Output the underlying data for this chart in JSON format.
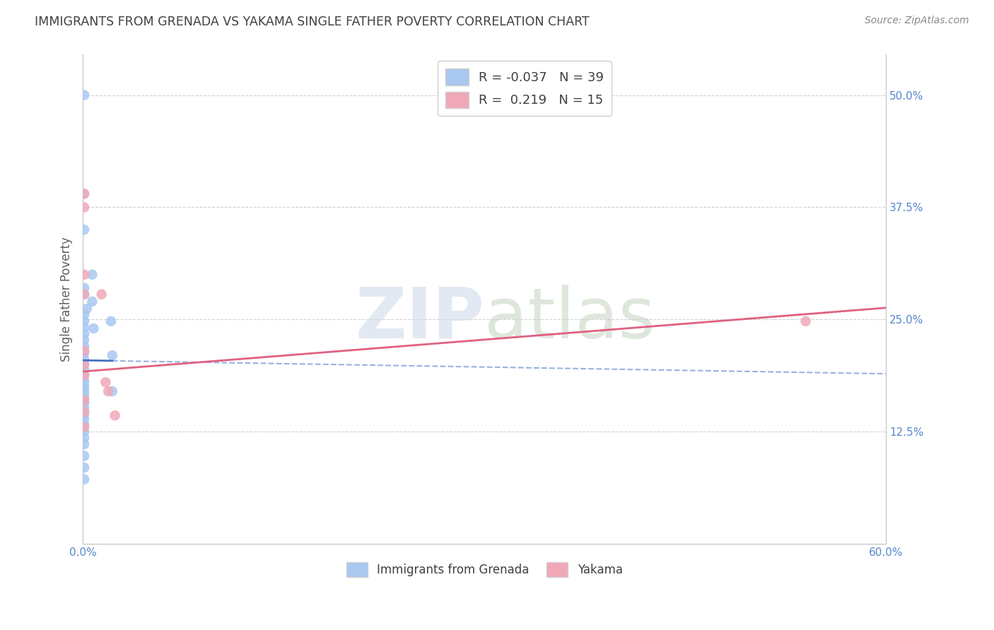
{
  "title": "IMMIGRANTS FROM GRENADA VS YAKAMA SINGLE FATHER POVERTY CORRELATION CHART",
  "source": "Source: ZipAtlas.com",
  "ylabel": "Single Father Poverty",
  "xlim": [
    0.0,
    0.6
  ],
  "ylim": [
    0.0,
    0.545
  ],
  "xticks": [
    0.0,
    0.12,
    0.24,
    0.36,
    0.48,
    0.6
  ],
  "xtick_labels": [
    "0.0%",
    "",
    "",
    "",
    "",
    "60.0%"
  ],
  "yticks": [
    0.0,
    0.125,
    0.25,
    0.375,
    0.5
  ],
  "ytick_labels": [
    "",
    "12.5%",
    "25.0%",
    "37.5%",
    "50.0%"
  ],
  "legend_label1": "R = -0.037   N = 39",
  "legend_label2": "R =  0.219   N = 15",
  "legend_footer1": "Immigrants from Grenada",
  "legend_footer2": "Yakama",
  "watermark_zip": "ZIP",
  "watermark_atlas": "atlas",
  "blue_scatter": [
    [
      0.001,
      0.5
    ],
    [
      0.001,
      0.39
    ],
    [
      0.001,
      0.35
    ],
    [
      0.007,
      0.3
    ],
    [
      0.001,
      0.285
    ],
    [
      0.001,
      0.278
    ],
    [
      0.007,
      0.27
    ],
    [
      0.003,
      0.262
    ],
    [
      0.001,
      0.255
    ],
    [
      0.001,
      0.248
    ],
    [
      0.001,
      0.241
    ],
    [
      0.001,
      0.234
    ],
    [
      0.001,
      0.227
    ],
    [
      0.001,
      0.22
    ],
    [
      0.001,
      0.213
    ],
    [
      0.001,
      0.206
    ],
    [
      0.001,
      0.2
    ],
    [
      0.001,
      0.194
    ],
    [
      0.001,
      0.188
    ],
    [
      0.001,
      0.182
    ],
    [
      0.001,
      0.177
    ],
    [
      0.001,
      0.172
    ],
    [
      0.001,
      0.167
    ],
    [
      0.001,
      0.162
    ],
    [
      0.001,
      0.157
    ],
    [
      0.001,
      0.151
    ],
    [
      0.001,
      0.145
    ],
    [
      0.001,
      0.139
    ],
    [
      0.001,
      0.133
    ],
    [
      0.001,
      0.125
    ],
    [
      0.001,
      0.118
    ],
    [
      0.001,
      0.111
    ],
    [
      0.001,
      0.098
    ],
    [
      0.001,
      0.085
    ],
    [
      0.001,
      0.072
    ],
    [
      0.008,
      0.24
    ],
    [
      0.021,
      0.248
    ],
    [
      0.022,
      0.21
    ],
    [
      0.022,
      0.17
    ]
  ],
  "pink_scatter": [
    [
      0.001,
      0.39
    ],
    [
      0.001,
      0.375
    ],
    [
      0.001,
      0.3
    ],
    [
      0.001,
      0.278
    ],
    [
      0.001,
      0.215
    ],
    [
      0.001,
      0.2
    ],
    [
      0.001,
      0.188
    ],
    [
      0.001,
      0.16
    ],
    [
      0.001,
      0.147
    ],
    [
      0.001,
      0.13
    ],
    [
      0.014,
      0.278
    ],
    [
      0.017,
      0.18
    ],
    [
      0.019,
      0.17
    ],
    [
      0.024,
      0.143
    ],
    [
      0.54,
      0.248
    ]
  ],
  "blue_color": "#a8c8f0",
  "pink_color": "#f0a8b8",
  "blue_line_color": "#4472c4",
  "pink_line_color": "#e06080",
  "grid_color": "#d0d0d0",
  "title_color": "#404040",
  "ylabel_color": "#606060",
  "tick_color": "#5588cc",
  "background_color": "#ffffff",
  "legend_edge_color": "#d0d0d0",
  "spine_color": "#c0c0c0",
  "blue_line_y0": 0.2045,
  "blue_line_y1": 0.1895,
  "pink_line_y0": 0.192,
  "pink_line_y1": 0.263
}
